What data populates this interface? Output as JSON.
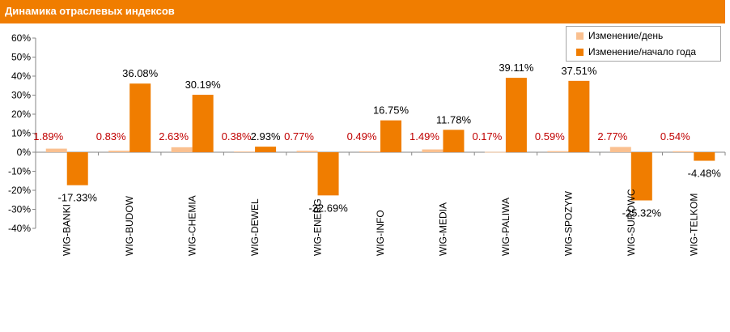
{
  "chart_data": {
    "type": "bar",
    "title": "Динамика отраслевых индексов",
    "categories": [
      "WIG-BANKI",
      "WIG-BUDOW",
      "WIG-CHEMIA",
      "WIG-DEWEL",
      "WIG-ENERG",
      "WIG-INFO",
      "WIG-MEDIA",
      "WIG-PALIWA",
      "WIG-SPOZYW",
      "WIG-SUROWC",
      "WIG-TELKOM"
    ],
    "series": [
      {
        "name": "Изменение/день",
        "color": "#fac090",
        "label_color": "#c00000",
        "values": [
          1.89,
          0.83,
          2.63,
          0.38,
          0.77,
          0.49,
          1.49,
          0.17,
          0.59,
          2.77,
          0.54
        ],
        "labels": [
          "1.89%",
          "0.83%",
          "2.63%",
          "0.38%",
          "0.77%",
          "0.49%",
          "1.49%",
          "0.17%",
          "0.59%",
          "2.77%",
          "0.54%"
        ]
      },
      {
        "name": "Изменение/начало года",
        "color": "#f07d00",
        "label_color": "#000000",
        "values": [
          -17.33,
          36.08,
          30.19,
          2.93,
          -22.69,
          16.75,
          11.78,
          39.11,
          37.51,
          -25.32,
          -4.48
        ],
        "labels": [
          "-17.33%",
          "36.08%",
          "30.19%",
          "2.93%",
          "-22.69%",
          "16.75%",
          "11.78%",
          "39.11%",
          "37.51%",
          "-25.32%",
          "-4.48%"
        ]
      }
    ],
    "ylim": [
      -40,
      60
    ],
    "yticks": [
      60,
      50,
      40,
      30,
      20,
      10,
      0,
      -10,
      -20,
      -30,
      -40
    ],
    "ytick_labels": [
      "60%",
      "50%",
      "40%",
      "30%",
      "20%",
      "10%",
      "0%",
      "-10%",
      "-20%",
      "-30%",
      "-40%"
    ],
    "legend_position": "top-right",
    "grid": false
  }
}
